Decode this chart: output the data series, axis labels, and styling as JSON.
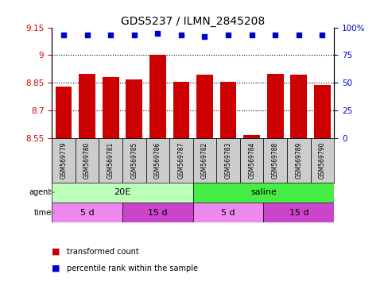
{
  "title": "GDS5237 / ILMN_2845208",
  "samples": [
    "GSM569779",
    "GSM569780",
    "GSM569781",
    "GSM569785",
    "GSM569786",
    "GSM569787",
    "GSM569782",
    "GSM569783",
    "GSM569784",
    "GSM569788",
    "GSM569789",
    "GSM569790"
  ],
  "bar_values": [
    8.83,
    8.9,
    8.88,
    8.87,
    9.0,
    8.855,
    8.895,
    8.855,
    8.565,
    8.9,
    8.895,
    8.84
  ],
  "percentile_values": [
    93,
    93,
    93,
    93,
    95,
    93,
    92,
    93,
    93,
    93,
    93,
    93
  ],
  "bar_color": "#cc0000",
  "dot_color": "#0000cc",
  "ylim_left": [
    8.55,
    9.15
  ],
  "ylim_right": [
    0,
    100
  ],
  "yticks_left": [
    8.55,
    8.7,
    8.85,
    9.0,
    9.15
  ],
  "ytick_labels_left": [
    "8.55",
    "8.7",
    "8.85",
    "9",
    "9.15"
  ],
  "yticks_right": [
    0,
    25,
    50,
    75,
    100
  ],
  "ytick_labels_right": [
    "0",
    "25",
    "50",
    "75",
    "100%"
  ],
  "hlines": [
    8.7,
    8.85,
    9.0
  ],
  "agent_groups": [
    {
      "label": "20E",
      "start": 0,
      "end": 6,
      "color": "#bbffbb"
    },
    {
      "label": "saline",
      "start": 6,
      "end": 12,
      "color": "#44ee44"
    }
  ],
  "time_groups": [
    {
      "label": "5 d",
      "start": 0,
      "end": 3,
      "color": "#ee88ee"
    },
    {
      "label": "15 d",
      "start": 3,
      "end": 6,
      "color": "#cc44cc"
    },
    {
      "label": "5 d",
      "start": 6,
      "end": 9,
      "color": "#ee88ee"
    },
    {
      "label": "15 d",
      "start": 9,
      "end": 12,
      "color": "#cc44cc"
    }
  ],
  "legend_items": [
    {
      "label": "transformed count",
      "color": "#cc0000"
    },
    {
      "label": "percentile rank within the sample",
      "color": "#0000cc"
    }
  ],
  "bar_width": 0.7,
  "sample_box_color": "#cccccc",
  "plot_bg": "#ffffff"
}
